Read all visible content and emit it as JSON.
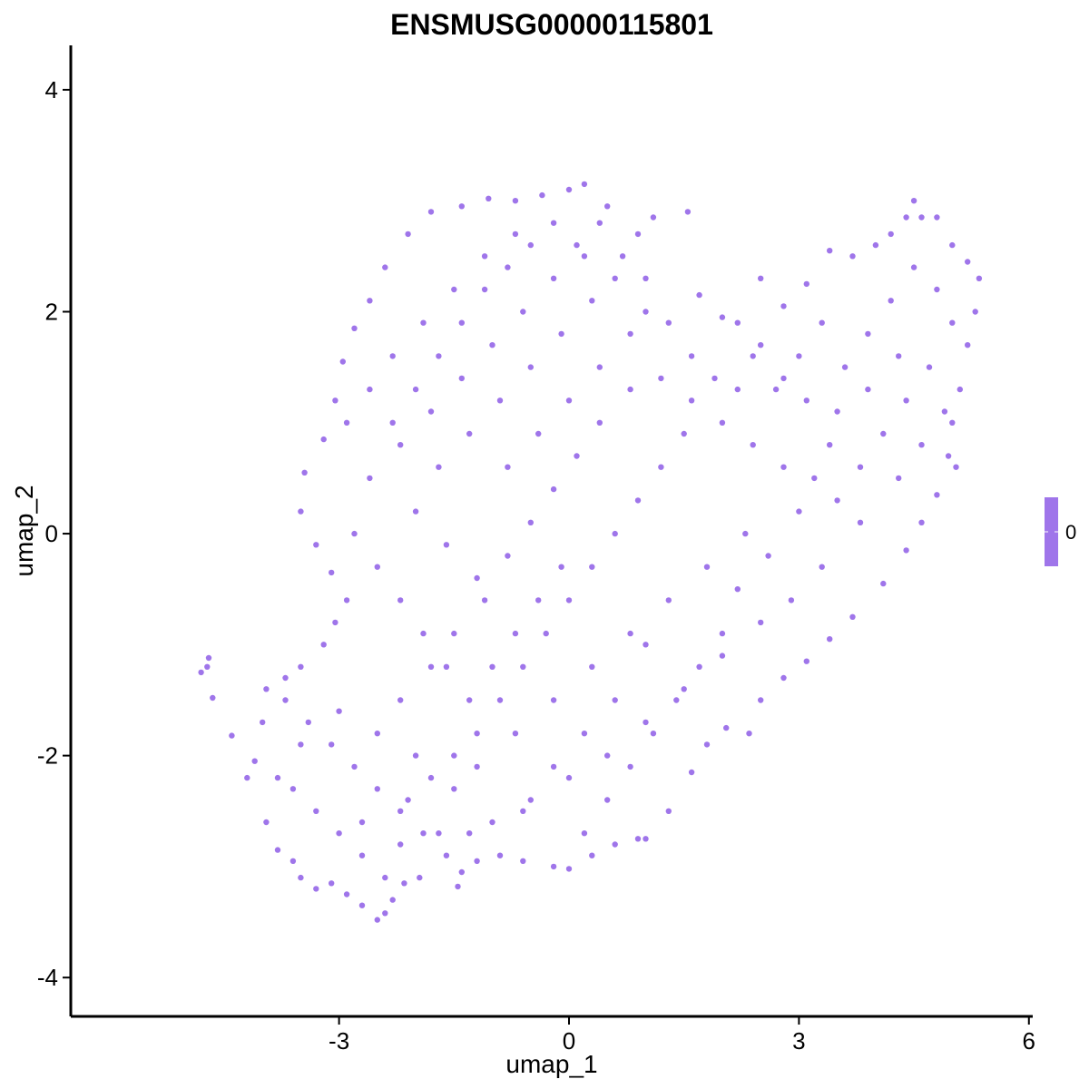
{
  "chart_data": {
    "type": "scatter",
    "title": "ENSMUSG00000115801",
    "xlabel": "umap_1",
    "ylabel": "umap_2",
    "xlim": [
      -6.5,
      6.05
    ],
    "ylim": [
      -4.35,
      4.4
    ],
    "x_ticks": [
      -3,
      0,
      3,
      6
    ],
    "y_ticks": [
      -4,
      -2,
      0,
      2,
      4
    ],
    "x_tick_labels": [
      "-3",
      "0",
      "3",
      "6"
    ],
    "y_tick_labels": [
      "-4",
      "-2",
      "0",
      "2",
      "4"
    ],
    "point_color": "#9F75EA",
    "color_scale": {
      "values": [
        0
      ],
      "labels": [
        "0"
      ],
      "colors": [
        "#9F75EA"
      ]
    },
    "legend_placement": "right",
    "grid": false,
    "series": [
      {
        "values": [
          [
            -4.8,
            -1.25
          ],
          [
            -4.7,
            -1.12
          ],
          [
            -4.72,
            -1.2
          ],
          [
            -4.65,
            -1.48
          ],
          [
            -4.4,
            -1.82
          ],
          [
            -4.2,
            -2.2
          ],
          [
            -4.1,
            -2.05
          ],
          [
            -3.95,
            -2.6
          ],
          [
            -3.8,
            -2.85
          ],
          [
            -3.6,
            -2.95
          ],
          [
            -3.5,
            -3.1
          ],
          [
            -3.3,
            -3.2
          ],
          [
            -3.1,
            -3.15
          ],
          [
            -2.9,
            -3.25
          ],
          [
            -2.7,
            -3.35
          ],
          [
            -2.5,
            -3.48
          ],
          [
            -2.4,
            -3.42
          ],
          [
            -2.3,
            -3.3
          ],
          [
            -2.15,
            -3.15
          ],
          [
            -1.95,
            -3.1
          ],
          [
            -1.4,
            -3.05
          ],
          [
            -1.45,
            -3.18
          ],
          [
            -1.2,
            -2.95
          ],
          [
            -0.9,
            -2.9
          ],
          [
            -0.6,
            -2.95
          ],
          [
            -0.2,
            -3.0
          ],
          [
            0.0,
            -3.02
          ],
          [
            0.3,
            -2.9
          ],
          [
            0.6,
            -2.8
          ],
          [
            0.9,
            -2.75
          ],
          [
            -3.95,
            -1.4
          ],
          [
            -3.7,
            -1.3
          ],
          [
            -3.5,
            -1.2
          ],
          [
            -3.2,
            -1.0
          ],
          [
            -3.05,
            -0.8
          ],
          [
            -2.9,
            -0.6
          ],
          [
            -3.1,
            -0.35
          ],
          [
            -3.3,
            -0.1
          ],
          [
            -3.5,
            0.2
          ],
          [
            -3.45,
            0.55
          ],
          [
            -3.2,
            0.85
          ],
          [
            -3.05,
            1.2
          ],
          [
            -2.95,
            1.55
          ],
          [
            -2.8,
            1.85
          ],
          [
            -2.6,
            2.1
          ],
          [
            -2.4,
            2.4
          ],
          [
            -2.1,
            2.7
          ],
          [
            -1.8,
            2.9
          ],
          [
            -1.4,
            2.95
          ],
          [
            -1.05,
            3.02
          ],
          [
            -0.7,
            3.0
          ],
          [
            -0.35,
            3.05
          ],
          [
            0.0,
            3.1
          ],
          [
            0.2,
            3.15
          ],
          [
            0.5,
            2.95
          ],
          [
            0.9,
            2.7
          ],
          [
            1.1,
            2.85
          ],
          [
            1.55,
            2.9
          ],
          [
            1.7,
            2.15
          ],
          [
            2.0,
            1.95
          ],
          [
            2.5,
            2.3
          ],
          [
            2.8,
            2.05
          ],
          [
            3.1,
            2.25
          ],
          [
            3.4,
            2.55
          ],
          [
            3.7,
            2.5
          ],
          [
            4.0,
            2.6
          ],
          [
            4.2,
            2.7
          ],
          [
            4.4,
            2.85
          ],
          [
            4.5,
            3.0
          ],
          [
            4.6,
            2.85
          ],
          [
            4.8,
            2.85
          ],
          [
            5.0,
            2.6
          ],
          [
            5.2,
            2.45
          ],
          [
            5.35,
            2.3
          ],
          [
            5.3,
            2.0
          ],
          [
            5.2,
            1.7
          ],
          [
            5.1,
            1.3
          ],
          [
            5.0,
            1.0
          ],
          [
            4.95,
            0.7
          ],
          [
            5.05,
            0.6
          ],
          [
            4.8,
            0.35
          ],
          [
            4.6,
            0.1
          ],
          [
            4.4,
            -0.15
          ],
          [
            4.1,
            -0.45
          ],
          [
            3.7,
            -0.75
          ],
          [
            3.4,
            -0.95
          ],
          [
            3.1,
            -1.15
          ],
          [
            2.8,
            -1.3
          ],
          [
            2.5,
            -1.5
          ],
          [
            2.35,
            -1.8
          ],
          [
            2.05,
            -1.75
          ],
          [
            1.8,
            -1.9
          ],
          [
            1.6,
            -2.15
          ],
          [
            1.3,
            -2.5
          ],
          [
            1.0,
            -2.75
          ],
          [
            -2.2,
            -1.5
          ],
          [
            -1.8,
            -1.2
          ],
          [
            -1.5,
            -0.9
          ],
          [
            -1.1,
            -0.6
          ],
          [
            -0.8,
            -0.2
          ],
          [
            -0.5,
            0.1
          ],
          [
            -0.2,
            0.4
          ],
          [
            0.1,
            0.7
          ],
          [
            0.4,
            1.0
          ],
          [
            0.8,
            1.3
          ],
          [
            1.2,
            1.4
          ],
          [
            1.6,
            1.2
          ],
          [
            2.0,
            1.0
          ],
          [
            2.4,
            0.8
          ],
          [
            2.8,
            0.6
          ],
          [
            3.2,
            0.5
          ],
          [
            3.5,
            0.3
          ],
          [
            3.8,
            0.1
          ],
          [
            3.3,
            -0.3
          ],
          [
            2.9,
            -0.6
          ],
          [
            2.5,
            -0.8
          ],
          [
            2.0,
            -1.1
          ],
          [
            1.5,
            -1.4
          ],
          [
            1.0,
            -1.7
          ],
          [
            0.5,
            -2.0
          ],
          [
            0.0,
            -2.2
          ],
          [
            -0.5,
            -2.4
          ],
          [
            -1.0,
            -2.6
          ],
          [
            -1.5,
            -2.3
          ],
          [
            -2.0,
            -2.0
          ],
          [
            -2.5,
            -1.8
          ],
          [
            -3.0,
            -1.6
          ],
          [
            -3.5,
            -1.9
          ],
          [
            -3.8,
            -2.2
          ],
          [
            -2.7,
            -2.6
          ],
          [
            -2.2,
            -2.8
          ],
          [
            -1.7,
            -2.7
          ],
          [
            -1.2,
            -2.1
          ],
          [
            -0.7,
            -1.8
          ],
          [
            -0.2,
            -1.5
          ],
          [
            0.3,
            -1.2
          ],
          [
            0.8,
            -0.9
          ],
          [
            1.3,
            -0.6
          ],
          [
            1.8,
            -0.3
          ],
          [
            2.3,
            0.0
          ],
          [
            -2.6,
            0.5
          ],
          [
            -2.2,
            0.8
          ],
          [
            -1.8,
            1.1
          ],
          [
            -1.4,
            1.4
          ],
          [
            -1.0,
            1.7
          ],
          [
            -0.6,
            2.0
          ],
          [
            -0.2,
            2.3
          ],
          [
            0.2,
            2.5
          ],
          [
            0.6,
            2.3
          ],
          [
            1.0,
            2.0
          ],
          [
            -2.3,
            1.6
          ],
          [
            -1.9,
            1.9
          ],
          [
            -1.5,
            2.2
          ],
          [
            -1.1,
            2.5
          ],
          [
            -0.7,
            2.7
          ],
          [
            -2.0,
            0.2
          ],
          [
            -1.6,
            -0.1
          ],
          [
            -1.2,
            -0.4
          ],
          [
            -0.8,
            0.6
          ],
          [
            -0.4,
            0.9
          ],
          [
            0.0,
            1.2
          ],
          [
            0.4,
            1.5
          ],
          [
            0.8,
            1.8
          ],
          [
            -1.7,
            0.6
          ],
          [
            -1.3,
            0.9
          ],
          [
            -0.9,
            1.2
          ],
          [
            -0.5,
            1.5
          ],
          [
            -0.1,
            1.8
          ],
          [
            0.3,
            2.1
          ],
          [
            3.6,
            1.5
          ],
          [
            3.9,
            1.8
          ],
          [
            4.2,
            2.1
          ],
          [
            4.5,
            2.4
          ],
          [
            4.8,
            2.2
          ],
          [
            5.0,
            1.9
          ],
          [
            4.7,
            1.5
          ],
          [
            4.4,
            1.2
          ],
          [
            4.1,
            0.9
          ],
          [
            3.8,
            0.6
          ],
          [
            4.3,
            0.5
          ],
          [
            4.6,
            0.8
          ],
          [
            4.9,
            1.1
          ],
          [
            3.3,
            1.9
          ],
          [
            3.0,
            1.6
          ],
          [
            2.7,
            1.3
          ],
          [
            2.4,
            1.6
          ],
          [
            2.2,
            1.3
          ],
          [
            3.5,
            1.1
          ],
          [
            3.9,
            1.3
          ],
          [
            4.3,
            1.6
          ],
          [
            -3.6,
            -2.3
          ],
          [
            -3.3,
            -2.5
          ],
          [
            -3.0,
            -2.7
          ],
          [
            -2.7,
            -2.9
          ],
          [
            -2.4,
            -3.1
          ],
          [
            -2.1,
            -2.4
          ],
          [
            -1.8,
            -2.2
          ],
          [
            -1.5,
            -2.0
          ],
          [
            -1.2,
            -1.8
          ],
          [
            -0.9,
            -1.5
          ],
          [
            -0.6,
            -1.2
          ],
          [
            -0.3,
            -0.9
          ],
          [
            0.0,
            -0.6
          ],
          [
            0.3,
            -0.3
          ],
          [
            0.6,
            0.0
          ],
          [
            0.9,
            0.3
          ],
          [
            1.2,
            0.6
          ],
          [
            1.5,
            0.9
          ],
          [
            0.2,
            -2.7
          ],
          [
            0.5,
            -2.4
          ],
          [
            0.8,
            -2.1
          ],
          [
            1.1,
            -1.8
          ],
          [
            1.4,
            -1.5
          ],
          [
            1.7,
            -1.2
          ],
          [
            2.0,
            -0.9
          ],
          [
            -4.0,
            -1.7
          ],
          [
            -3.7,
            -1.5
          ],
          [
            -3.4,
            -1.7
          ],
          [
            -3.1,
            -1.9
          ],
          [
            -2.8,
            -2.1
          ],
          [
            -2.5,
            -2.3
          ],
          [
            -2.2,
            -2.5
          ],
          [
            -1.9,
            -2.7
          ],
          [
            -1.6,
            -2.9
          ],
          [
            -1.3,
            -2.7
          ],
          [
            -2.8,
            0.0
          ],
          [
            -2.5,
            -0.3
          ],
          [
            -2.2,
            -0.6
          ],
          [
            -1.9,
            -0.9
          ],
          [
            -1.6,
            -1.2
          ],
          [
            -1.3,
            -1.5
          ],
          [
            -1.0,
            -1.2
          ],
          [
            -0.7,
            -0.9
          ],
          [
            -0.4,
            -0.6
          ],
          [
            -0.1,
            -0.3
          ],
          [
            -2.9,
            1.0
          ],
          [
            -2.6,
            1.3
          ],
          [
            -2.3,
            1.0
          ],
          [
            -2.0,
            1.3
          ],
          [
            -1.7,
            1.6
          ],
          [
            -1.4,
            1.9
          ],
          [
            -1.1,
            2.2
          ],
          [
            -0.8,
            2.4
          ],
          [
            -0.5,
            2.6
          ],
          [
            -0.2,
            2.8
          ],
          [
            0.1,
            2.6
          ],
          [
            0.4,
            2.8
          ],
          [
            0.7,
            2.5
          ],
          [
            1.0,
            2.3
          ],
          [
            1.3,
            1.9
          ],
          [
            1.6,
            1.6
          ],
          [
            1.9,
            1.4
          ],
          [
            2.2,
            1.9
          ],
          [
            2.5,
            1.7
          ],
          [
            2.8,
            1.4
          ],
          [
            3.1,
            1.2
          ],
          [
            3.4,
            0.8
          ],
          [
            3.0,
            0.2
          ],
          [
            2.6,
            -0.2
          ],
          [
            2.2,
            -0.5
          ],
          [
            1.0,
            -1.0
          ],
          [
            0.6,
            -1.5
          ],
          [
            0.2,
            -1.8
          ],
          [
            -0.2,
            -2.1
          ],
          [
            -0.6,
            -2.5
          ]
        ]
      }
    ]
  }
}
